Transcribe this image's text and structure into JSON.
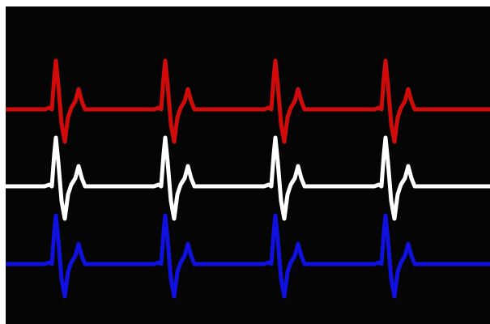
{
  "monitor": {
    "background_color": "#050505",
    "frame_color": "#ffffff",
    "traces": [
      {
        "color": "#d10a0a",
        "beats_visible": 4
      },
      {
        "color": "#ffffff",
        "beats_visible": 4
      },
      {
        "color": "#1010e0",
        "beats_visible": 4
      }
    ]
  }
}
